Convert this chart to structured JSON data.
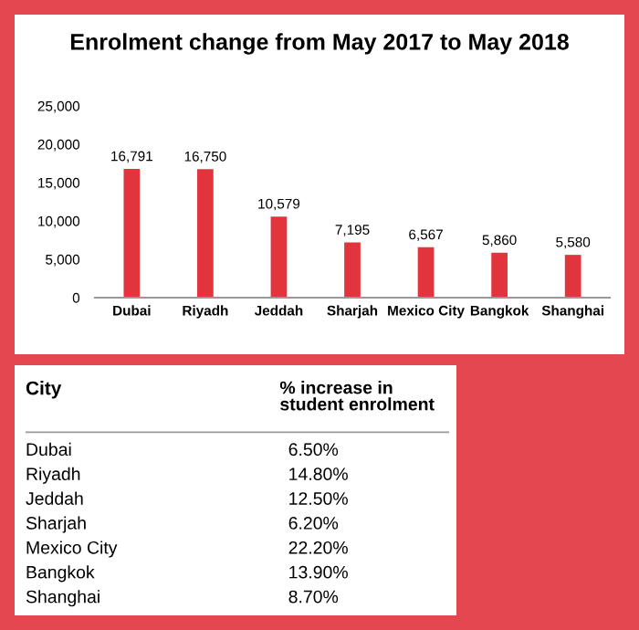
{
  "chart_data": [
    {
      "type": "bar",
      "title": "Enrolment change from May 2017 to May 2018",
      "categories": [
        "Dubai",
        "Riyadh",
        "Jeddah",
        "Sharjah",
        "Mexico City",
        "Bangkok",
        "Shanghai"
      ],
      "values": [
        16791,
        16750,
        10579,
        7195,
        6567,
        5860,
        5580
      ],
      "color": "#e2343c",
      "ylim": [
        0,
        25000
      ],
      "yticks": [
        {
          "value": 0,
          "label": "0"
        },
        {
          "value": 5000,
          "label": "5,000"
        },
        {
          "value": 10000,
          "label": "10,000"
        },
        {
          "value": 15000,
          "label": "15,000"
        },
        {
          "value": 20000,
          "label": "20,000"
        },
        {
          "value": 25000,
          "label": "25,000"
        }
      ],
      "value_labels": [
        "16,791",
        "16,750",
        "10,579",
        "7,195",
        "6,567",
        "5,860",
        "5,580"
      ],
      "grid": false
    },
    {
      "type": "other",
      "xlabel": "City",
      "ylabel": "% increase in\nstudent enrolment",
      "categories": [
        "Dubai",
        "Riyadh",
        "Jeddah",
        "Sharjah",
        "Mexico City",
        "Bangkok",
        "Shanghai"
      ],
      "value_labels": [
        "6.50%",
        "14.80%",
        "12.50%",
        "6.20%",
        "22.20%",
        "13.90%",
        "8.70%"
      ]
    }
  ]
}
